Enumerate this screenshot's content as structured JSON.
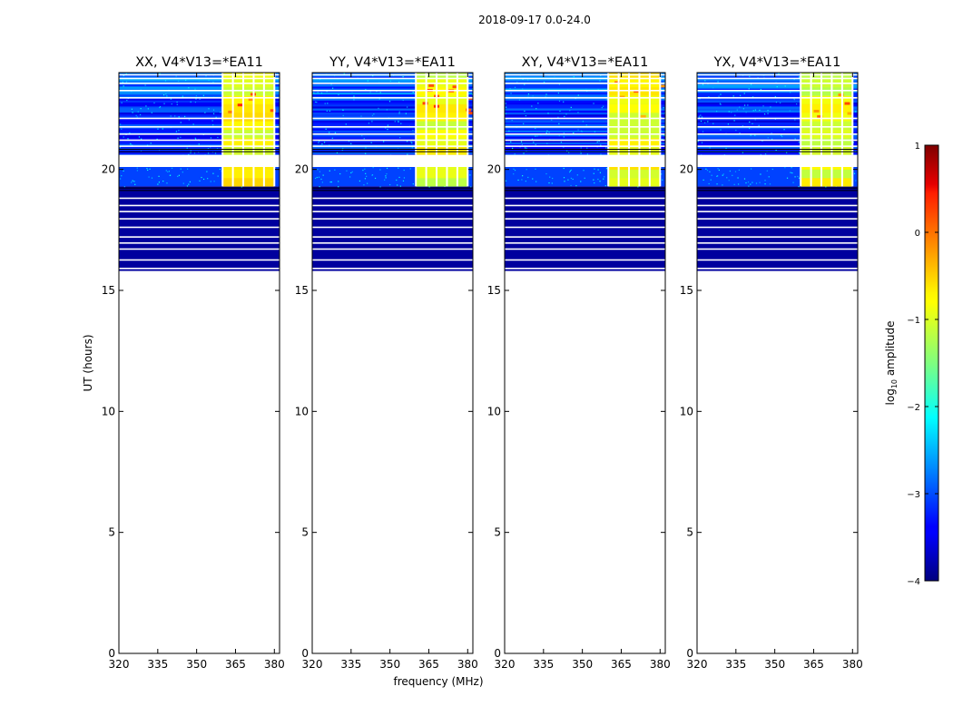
{
  "figure": {
    "title": "2018-09-17 0.0-24.0",
    "xlabel": "frequency (MHz)",
    "ylabel": "UT (hours)"
  },
  "colorbar": {
    "label_prefix": "log",
    "label_sub": "10",
    "label_suffix": " amplitude",
    "range": [
      -4,
      1
    ],
    "ticks": [
      1,
      0,
      -1,
      -2,
      -3,
      -4
    ],
    "tick_labels": [
      "1",
      "0",
      "−1",
      "−2",
      "−3",
      "−4"
    ],
    "colormap": "jet"
  },
  "chart_data": {
    "type": "heatmap",
    "xlim": [
      320,
      382
    ],
    "ylim": [
      0,
      24
    ],
    "xticks": [
      320,
      335,
      350,
      365,
      380
    ],
    "yticks": [
      0,
      5,
      10,
      15,
      20
    ],
    "panels": [
      {
        "title": "XX, V4*V13=*EA11",
        "polarization": "XX"
      },
      {
        "title": "YY, V4*V13=*EA11",
        "polarization": "YY"
      },
      {
        "title": "XY, V4*V13=*EA11",
        "polarization": "XY"
      },
      {
        "title": "YX, V4*V13=*EA11",
        "polarization": "YX"
      }
    ],
    "data_time_range": [
      15.8,
      24.0
    ],
    "no_data_time_gap": [
      20.1,
      20.6
    ],
    "rfi_band_mhz": [
      360,
      380
    ],
    "background_log_amplitude": -3.2,
    "rfi_log_amplitude": -1.0,
    "peak_log_amplitude": 0.2
  }
}
